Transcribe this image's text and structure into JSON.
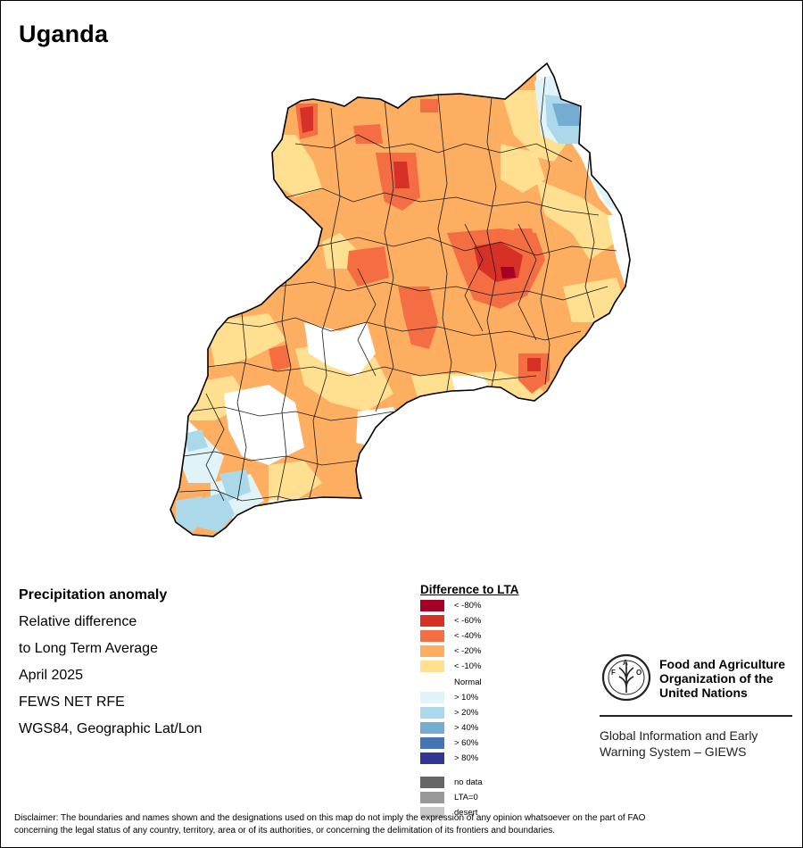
{
  "map": {
    "title": "Uganda",
    "info": {
      "heading": "Precipitation anomaly",
      "line1": "Relative difference",
      "line2": "to Long Term Average",
      "date": "April 2025",
      "source": "FEWS NET RFE",
      "projection": "WGS84, Geographic Lat/Lon"
    }
  },
  "legend": {
    "title": "Difference to LTA",
    "items": [
      {
        "label": "< -80%",
        "color": "#a50026"
      },
      {
        "label": "< -60%",
        "color": "#d73027"
      },
      {
        "label": "< -40%",
        "color": "#f46d43"
      },
      {
        "label": "< -20%",
        "color": "#fdae61"
      },
      {
        "label": "< -10%",
        "color": "#fee090"
      },
      {
        "label": "Normal",
        "color": "#ffffff"
      },
      {
        "label": "> 10%",
        "color": "#e0f3f8"
      },
      {
        "label": "> 20%",
        "color": "#abd9e9"
      },
      {
        "label": "> 40%",
        "color": "#74add1"
      },
      {
        "label": "> 60%",
        "color": "#4575b4"
      },
      {
        "label": "> 80%",
        "color": "#313695"
      },
      {
        "label": "no data",
        "color": "#666666"
      },
      {
        "label": "LTA=0",
        "color": "#999999"
      },
      {
        "label": "desert",
        "color": "#c8c8c8"
      }
    ]
  },
  "logo": {
    "emblem_text": "FIAT PANIS",
    "org_line1": "Food and Agriculture",
    "org_line2": "Organization of the",
    "org_line3": "United Nations",
    "system_line1": "Global Information and Early",
    "system_line2": "Warning System – GIEWS"
  },
  "disclaimer": {
    "line1": "Disclaimer: The boundaries and names shown and the designations used on this map do not imply the expression of any opinion whatsoever on the part of FAO",
    "line2": "concerning the legal status of any country, territory, area or of its authorities, or concerning the delimitation of its frontiers and boundaries."
  }
}
